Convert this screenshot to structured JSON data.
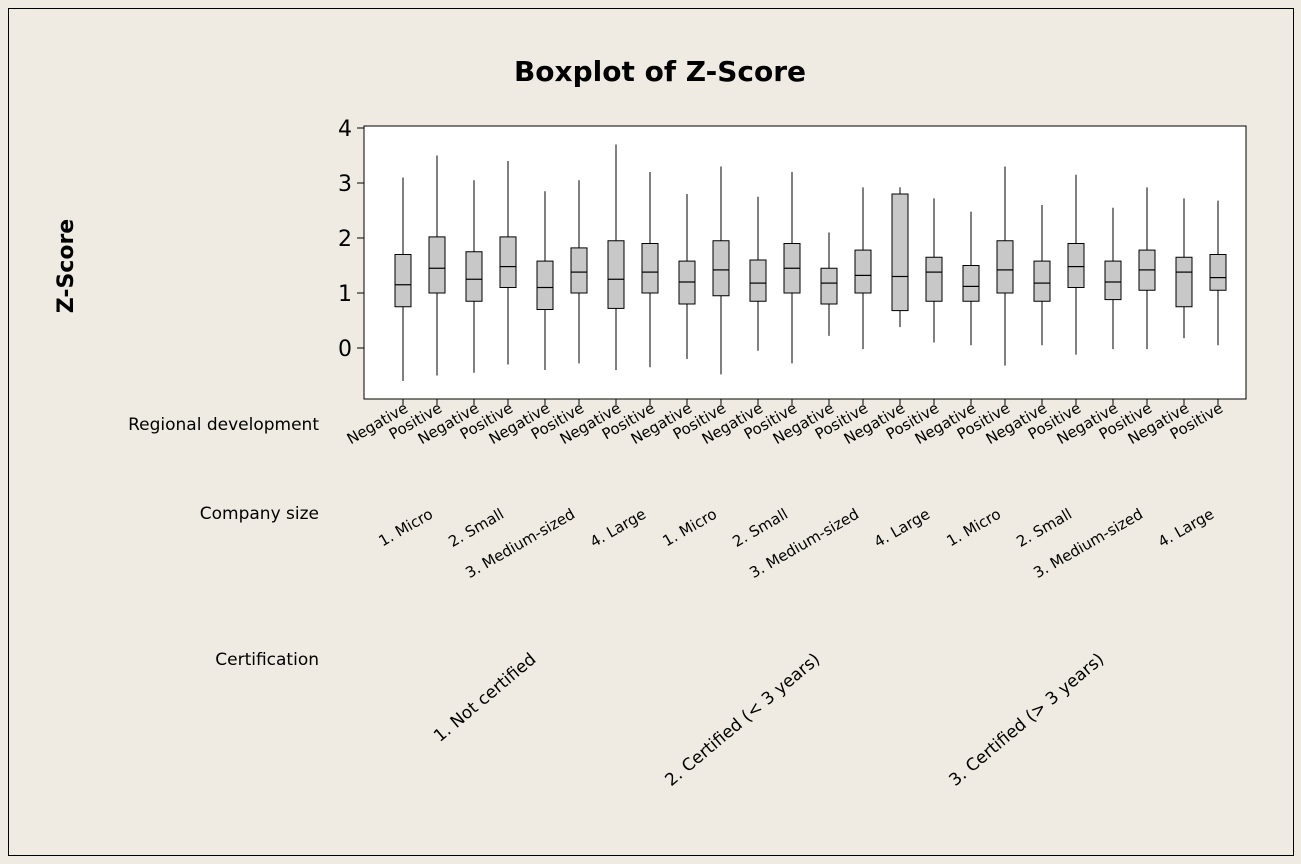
{
  "chart_data": {
    "type": "boxplot",
    "title": "Boxplot of Z-Score",
    "ylabel": "Z-Score",
    "ylim": [
      -1,
      4
    ],
    "yticks": [
      0,
      1,
      2,
      3,
      4
    ],
    "grid": false,
    "legend": "none",
    "box_color": "#c8c8c8",
    "row_labels": [
      "Regional development",
      "Company size",
      "Certification"
    ],
    "certification_groups": [
      "1. Not certified",
      "2. Certified (< 3 years)",
      "3. Certified (> 3 years)"
    ],
    "company_sizes": [
      "1. Micro",
      "2. Small",
      "3. Medium-sized",
      "4. Large"
    ],
    "regional_development": [
      "Negative",
      "Positive"
    ],
    "boxes": [
      {
        "certification": "1. Not certified",
        "size": "1. Micro",
        "regional": "Negative",
        "min": -0.6,
        "q1": 0.75,
        "median": 1.15,
        "q3": 1.7,
        "max": 3.1
      },
      {
        "certification": "1. Not certified",
        "size": "1. Micro",
        "regional": "Positive",
        "min": -0.5,
        "q1": 1.0,
        "median": 1.45,
        "q3": 2.02,
        "max": 3.5
      },
      {
        "certification": "1. Not certified",
        "size": "2. Small",
        "regional": "Negative",
        "min": -0.45,
        "q1": 0.85,
        "median": 1.25,
        "q3": 1.75,
        "max": 3.05
      },
      {
        "certification": "1. Not certified",
        "size": "2. Small",
        "regional": "Positive",
        "min": -0.3,
        "q1": 1.1,
        "median": 1.48,
        "q3": 2.02,
        "max": 3.4
      },
      {
        "certification": "1. Not certified",
        "size": "3. Medium-sized",
        "regional": "Negative",
        "min": -0.4,
        "q1": 0.7,
        "median": 1.1,
        "q3": 1.58,
        "max": 2.85
      },
      {
        "certification": "1. Not certified",
        "size": "3. Medium-sized",
        "regional": "Positive",
        "min": -0.28,
        "q1": 1.0,
        "median": 1.38,
        "q3": 1.82,
        "max": 3.05
      },
      {
        "certification": "1. Not certified",
        "size": "4. Large",
        "regional": "Negative",
        "min": -0.4,
        "q1": 0.72,
        "median": 1.25,
        "q3": 1.95,
        "max": 3.7
      },
      {
        "certification": "1. Not certified",
        "size": "4. Large",
        "regional": "Positive",
        "min": -0.35,
        "q1": 1.0,
        "median": 1.38,
        "q3": 1.9,
        "max": 3.2
      },
      {
        "certification": "2. Certified (< 3 years)",
        "size": "1. Micro",
        "regional": "Negative",
        "min": -0.2,
        "q1": 0.8,
        "median": 1.2,
        "q3": 1.58,
        "max": 2.8
      },
      {
        "certification": "2. Certified (< 3 years)",
        "size": "1. Micro",
        "regional": "Positive",
        "min": -0.48,
        "q1": 0.95,
        "median": 1.42,
        "q3": 1.95,
        "max": 3.3
      },
      {
        "certification": "2. Certified (< 3 years)",
        "size": "2. Small",
        "regional": "Negative",
        "min": -0.05,
        "q1": 0.85,
        "median": 1.18,
        "q3": 1.6,
        "max": 2.75
      },
      {
        "certification": "2. Certified (< 3 years)",
        "size": "2. Small",
        "regional": "Positive",
        "min": -0.28,
        "q1": 1.0,
        "median": 1.45,
        "q3": 1.9,
        "max": 3.2
      },
      {
        "certification": "2. Certified (< 3 years)",
        "size": "3. Medium-sized",
        "regional": "Negative",
        "min": 0.22,
        "q1": 0.8,
        "median": 1.18,
        "q3": 1.45,
        "max": 2.1
      },
      {
        "certification": "2. Certified (< 3 years)",
        "size": "3. Medium-sized",
        "regional": "Positive",
        "min": -0.02,
        "q1": 1.0,
        "median": 1.32,
        "q3": 1.78,
        "max": 2.92
      },
      {
        "certification": "2. Certified (< 3 years)",
        "size": "4. Large",
        "regional": "Negative",
        "min": 0.38,
        "q1": 0.68,
        "median": 1.3,
        "q3": 2.8,
        "max": 2.92
      },
      {
        "certification": "2. Certified (< 3 years)",
        "size": "4. Large",
        "regional": "Positive",
        "min": 0.1,
        "q1": 0.85,
        "median": 1.38,
        "q3": 1.65,
        "max": 2.72
      },
      {
        "certification": "3. Certified (> 3 years)",
        "size": "1. Micro",
        "regional": "Negative",
        "min": 0.05,
        "q1": 0.85,
        "median": 1.12,
        "q3": 1.5,
        "max": 2.48
      },
      {
        "certification": "3. Certified (> 3 years)",
        "size": "1. Micro",
        "regional": "Positive",
        "min": -0.32,
        "q1": 1.0,
        "median": 1.42,
        "q3": 1.95,
        "max": 3.3
      },
      {
        "certification": "3. Certified (> 3 years)",
        "size": "2. Small",
        "regional": "Negative",
        "min": 0.05,
        "q1": 0.85,
        "median": 1.18,
        "q3": 1.58,
        "max": 2.6
      },
      {
        "certification": "3. Certified (> 3 years)",
        "size": "2. Small",
        "regional": "Positive",
        "min": -0.12,
        "q1": 1.1,
        "median": 1.48,
        "q3": 1.9,
        "max": 3.15
      },
      {
        "certification": "3. Certified (> 3 years)",
        "size": "3. Medium-sized",
        "regional": "Negative",
        "min": -0.02,
        "q1": 0.88,
        "median": 1.2,
        "q3": 1.58,
        "max": 2.55
      },
      {
        "certification": "3. Certified (> 3 years)",
        "size": "3. Medium-sized",
        "regional": "Positive",
        "min": -0.02,
        "q1": 1.05,
        "median": 1.42,
        "q3": 1.78,
        "max": 2.92
      },
      {
        "certification": "3. Certified (> 3 years)",
        "size": "4. Large",
        "regional": "Negative",
        "min": 0.18,
        "q1": 0.75,
        "median": 1.38,
        "q3": 1.65,
        "max": 2.72
      },
      {
        "certification": "3. Certified (> 3 years)",
        "size": "4. Large",
        "regional": "Positive",
        "min": 0.05,
        "q1": 1.05,
        "median": 1.28,
        "q3": 1.7,
        "max": 2.68
      }
    ]
  }
}
